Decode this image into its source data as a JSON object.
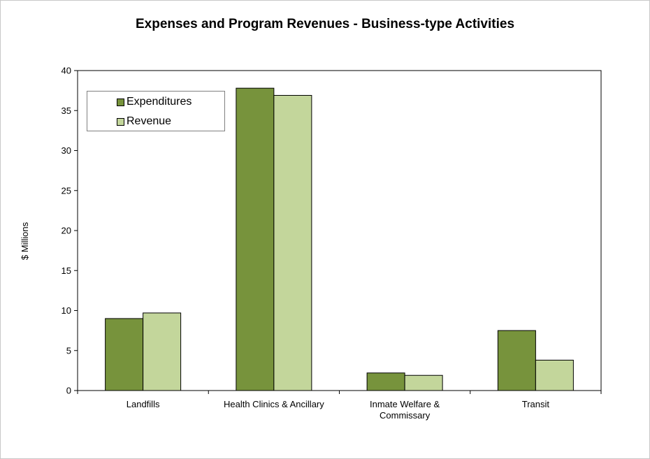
{
  "chart_data": {
    "type": "bar",
    "title": "Expenses and Program Revenues - Business-type Activities",
    "ylabel": "$ Millions",
    "xlabel": "",
    "ylim": [
      0,
      40
    ],
    "yticks": [
      "0",
      "5",
      "10",
      "15",
      "20",
      "25",
      "30",
      "35",
      "40"
    ],
    "categories": [
      [
        "Landfills"
      ],
      [
        "Health Clinics & Ancillary"
      ],
      [
        "Inmate Welfare &",
        "Commissary"
      ],
      [
        "Transit"
      ]
    ],
    "series": [
      {
        "name": "Expenditures",
        "color": "#77933c",
        "values": [
          9.0,
          37.8,
          2.2,
          7.5
        ]
      },
      {
        "name": "Revenue",
        "color": "#c3d69b",
        "values": [
          9.7,
          36.9,
          1.9,
          3.8
        ]
      }
    ],
    "legend_position": "top-left",
    "grid": false
  }
}
